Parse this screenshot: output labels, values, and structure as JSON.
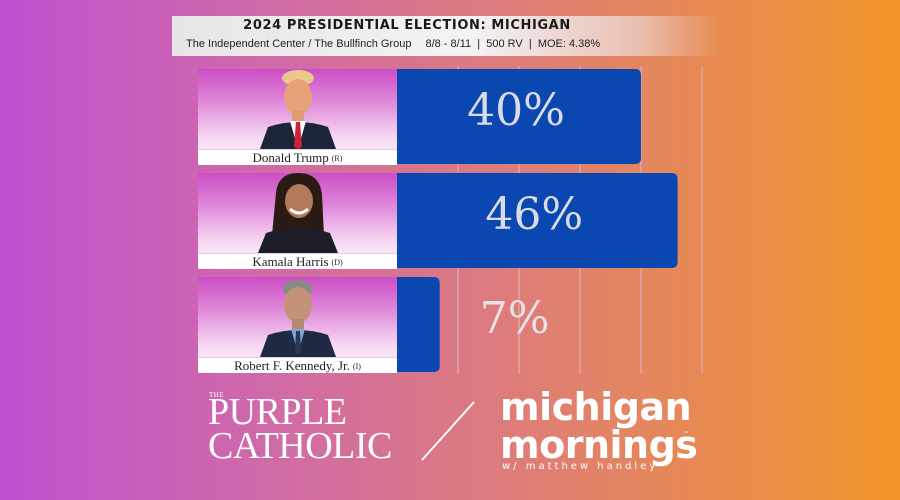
{
  "header": {
    "title": "2024 PRESIDENTIAL ELECTION: MICHIGAN",
    "pollster": "The Independent Center / The Bullfinch Group",
    "dates": "8/8 - 8/11",
    "sample": "500 RV",
    "moe": "MOE: 4.38%"
  },
  "chart_data": {
    "type": "bar",
    "orientation": "horizontal",
    "title": "2024 PRESIDENTIAL ELECTION: MICHIGAN",
    "categories": [
      "Donald Trump (R)",
      "Kamala Harris (D)",
      "Robert F. Kennedy, Jr. (I)"
    ],
    "values": [
      40,
      46,
      7
    ],
    "labels": [
      "40%",
      "46%",
      "7%"
    ],
    "xlim": [
      0,
      50
    ],
    "grid": true,
    "legend": "none",
    "bar_color": "#0a47b0"
  },
  "candidates": [
    {
      "name": "Donald Trump",
      "party": "(R)",
      "value_label": "40%",
      "value": 40
    },
    {
      "name": "Kamala Harris",
      "party": "(D)",
      "value_label": "46%",
      "value": 46
    },
    {
      "name": "Robert F. Kennedy, Jr.",
      "party": "(I)",
      "value_label": "7%",
      "value": 7
    }
  ],
  "branding": {
    "purple_the": "THE",
    "purple_line1": "PURPLE",
    "purple_line2": "CATHOLIC",
    "mm_line1": "michigan",
    "mm_line2": "mornings",
    "mm_tm": "™",
    "mm_tagline": "w/ matthew handley"
  },
  "colors": {
    "bar": "#0a47b0",
    "grid": "#d8a6a8",
    "background_left": "#c050d0",
    "background_right": "#f0962a"
  }
}
